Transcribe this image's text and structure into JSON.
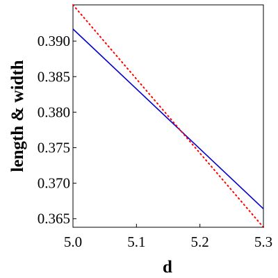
{
  "chart_data": {
    "type": "line",
    "xlabel": "d",
    "ylabel": "length & width",
    "xlim": [
      5.0,
      5.3
    ],
    "ylim": [
      0.3638,
      0.3951
    ],
    "x_ticks": [
      5.0,
      5.1,
      5.2,
      5.3
    ],
    "x_tick_labels": [
      "5.0",
      "5.1",
      "5.2",
      "5.3"
    ],
    "y_ticks": [
      0.365,
      0.37,
      0.375,
      0.38,
      0.385,
      0.39
    ],
    "y_tick_labels": [
      "0.365",
      "0.370",
      "0.375",
      "0.380",
      "0.385",
      "0.390"
    ],
    "grid": false,
    "legend": "none",
    "series": [
      {
        "color": "#0000cc",
        "style": "solid",
        "x": [
          5.0,
          5.3
        ],
        "y": [
          0.3917,
          0.3664
        ]
      },
      {
        "color": "#ff0000",
        "style": "dotted",
        "x": [
          5.0,
          5.3
        ],
        "y": [
          0.3951,
          0.3638
        ]
      }
    ]
  }
}
